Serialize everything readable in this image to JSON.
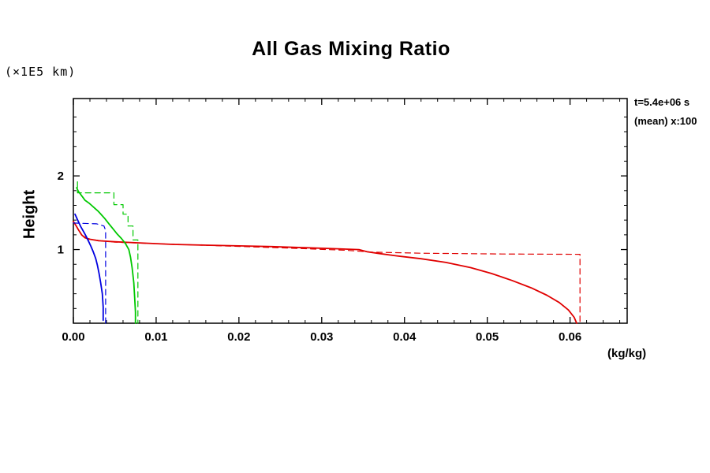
{
  "title": "All Gas Mixing Ratio",
  "y_axis": {
    "unit_label": "(×1E5 km)",
    "label": "Height"
  },
  "x_axis": {
    "unit_label": "(kg/kg)"
  },
  "annotations": {
    "time": "t=5.4e+06 s",
    "mean": "(mean) x:100"
  },
  "colors": {
    "red": "#e00000",
    "green": "#00c800",
    "blue": "#0000e0",
    "axis": "#000000"
  },
  "chart_data": {
    "type": "line",
    "title": "All Gas Mixing Ratio",
    "xlabel": "(kg/kg)",
    "ylabel": "Height (×1E5 km)",
    "xlim": [
      0,
      0.0669
    ],
    "ylim": [
      0,
      3.05
    ],
    "grid": false,
    "legend": "none",
    "x_ticks": [
      {
        "v": 0.0,
        "label": "0.00"
      },
      {
        "v": 0.01,
        "label": "0.01"
      },
      {
        "v": 0.02,
        "label": "0.02"
      },
      {
        "v": 0.03,
        "label": "0.03"
      },
      {
        "v": 0.04,
        "label": "0.04"
      },
      {
        "v": 0.05,
        "label": "0.05"
      },
      {
        "v": 0.06,
        "label": "0.06"
      }
    ],
    "x_minor_step": 0.002,
    "y_ticks": [
      {
        "v": 1,
        "label": "1"
      },
      {
        "v": 2,
        "label": "2"
      }
    ],
    "y_minor_step": 0.2,
    "annotations": [
      "t=5.4e+06 s",
      "(mean) x:100"
    ],
    "series": [
      {
        "name": "red-solid",
        "color": "#e00000",
        "dashed": false,
        "width": 1.8,
        "points": [
          [
            0.0,
            1.38
          ],
          [
            0.0003,
            1.33
          ],
          [
            0.0006,
            1.27
          ],
          [
            0.001,
            1.2
          ],
          [
            0.0014,
            1.16
          ],
          [
            0.002,
            1.14
          ],
          [
            0.003,
            1.12
          ],
          [
            0.005,
            1.105
          ],
          [
            0.008,
            1.09
          ],
          [
            0.012,
            1.07
          ],
          [
            0.016,
            1.06
          ],
          [
            0.02,
            1.05
          ],
          [
            0.024,
            1.04
          ],
          [
            0.028,
            1.025
          ],
          [
            0.032,
            1.01
          ],
          [
            0.0345,
            1.0
          ],
          [
            0.0355,
            0.97
          ],
          [
            0.037,
            0.945
          ],
          [
            0.039,
            0.915
          ],
          [
            0.042,
            0.875
          ],
          [
            0.045,
            0.825
          ],
          [
            0.048,
            0.755
          ],
          [
            0.0505,
            0.675
          ],
          [
            0.053,
            0.58
          ],
          [
            0.0553,
            0.48
          ],
          [
            0.0572,
            0.38
          ],
          [
            0.0587,
            0.28
          ],
          [
            0.0598,
            0.18
          ],
          [
            0.0605,
            0.08
          ],
          [
            0.0608,
            0.0
          ]
        ]
      },
      {
        "name": "red-dashed",
        "color": "#e00000",
        "dashed": true,
        "width": 1.2,
        "points": [
          [
            0.0,
            1.38
          ],
          [
            0.001,
            1.2
          ],
          [
            0.0018,
            1.14
          ],
          [
            0.005,
            1.1
          ],
          [
            0.01,
            1.08
          ],
          [
            0.018,
            1.05
          ],
          [
            0.026,
            1.02
          ],
          [
            0.033,
            0.99
          ],
          [
            0.036,
            0.965
          ],
          [
            0.042,
            0.95
          ],
          [
            0.052,
            0.94
          ],
          [
            0.0612,
            0.935
          ],
          [
            0.0612,
            0.0
          ]
        ]
      },
      {
        "name": "green-solid",
        "color": "#00c800",
        "dashed": false,
        "width": 1.8,
        "points": [
          [
            0.0004,
            1.84
          ],
          [
            0.0006,
            1.79
          ],
          [
            0.0008,
            1.76
          ],
          [
            0.0012,
            1.7
          ],
          [
            0.0014,
            1.67
          ],
          [
            0.0019,
            1.63
          ],
          [
            0.0022,
            1.6
          ],
          [
            0.0027,
            1.55
          ],
          [
            0.003,
            1.52
          ],
          [
            0.0034,
            1.47
          ],
          [
            0.0038,
            1.42
          ],
          [
            0.0043,
            1.35
          ],
          [
            0.0048,
            1.28
          ],
          [
            0.0053,
            1.21
          ],
          [
            0.0058,
            1.15
          ],
          [
            0.0063,
            1.08
          ],
          [
            0.0067,
            1.0
          ],
          [
            0.0069,
            0.9
          ],
          [
            0.0071,
            0.75
          ],
          [
            0.0073,
            0.55
          ],
          [
            0.0074,
            0.35
          ],
          [
            0.0075,
            0.15
          ],
          [
            0.0075,
            0.0
          ]
        ]
      },
      {
        "name": "green-dashed",
        "color": "#00c800",
        "dashed": true,
        "width": 1.2,
        "points": [
          [
            0.0005,
            1.92
          ],
          [
            0.0005,
            1.77
          ],
          [
            0.0049,
            1.77
          ],
          [
            0.0049,
            1.61
          ],
          [
            0.006,
            1.61
          ],
          [
            0.006,
            1.48
          ],
          [
            0.0066,
            1.48
          ],
          [
            0.0066,
            1.32
          ],
          [
            0.0072,
            1.32
          ],
          [
            0.0072,
            1.13
          ],
          [
            0.0078,
            1.13
          ],
          [
            0.0078,
            0.0
          ]
        ]
      },
      {
        "name": "blue-solid",
        "color": "#0000e0",
        "dashed": false,
        "width": 1.8,
        "points": [
          [
            0.0002,
            1.48
          ],
          [
            0.0004,
            1.43
          ],
          [
            0.0006,
            1.38
          ],
          [
            0.0009,
            1.31
          ],
          [
            0.0012,
            1.25
          ],
          [
            0.0015,
            1.19
          ],
          [
            0.0018,
            1.12
          ],
          [
            0.0021,
            1.05
          ],
          [
            0.0024,
            0.97
          ],
          [
            0.0027,
            0.88
          ],
          [
            0.0029,
            0.79
          ],
          [
            0.0031,
            0.68
          ],
          [
            0.0033,
            0.55
          ],
          [
            0.0035,
            0.4
          ],
          [
            0.0036,
            0.22
          ],
          [
            0.0036,
            0.04
          ]
        ]
      },
      {
        "name": "blue-dashed",
        "color": "#0000e0",
        "dashed": true,
        "width": 1.2,
        "points": [
          [
            0.0,
            1.36
          ],
          [
            0.0028,
            1.35
          ],
          [
            0.0037,
            1.32
          ],
          [
            0.0039,
            1.26
          ],
          [
            0.0039,
            0.0
          ]
        ]
      }
    ]
  }
}
